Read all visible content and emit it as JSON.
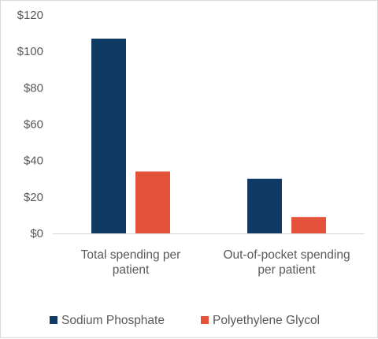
{
  "chart_data": {
    "type": "bar",
    "categories": [
      [
        "Total spending per",
        "patient"
      ],
      [
        "Out-of-pocket spending",
        "per patient"
      ]
    ],
    "series": [
      {
        "name": "Sodium Phosphate",
        "color": "#0e3a63",
        "values": [
          107,
          30
        ]
      },
      {
        "name": "Polyethylene Glycol",
        "color": "#e4523b",
        "values": [
          34,
          9
        ]
      }
    ],
    "y_ticks": [
      "$0",
      "$20",
      "$40",
      "$60",
      "$80",
      "$100",
      "$120"
    ],
    "ylim": [
      0,
      120
    ],
    "grid": false,
    "legend_position": "bottom"
  }
}
